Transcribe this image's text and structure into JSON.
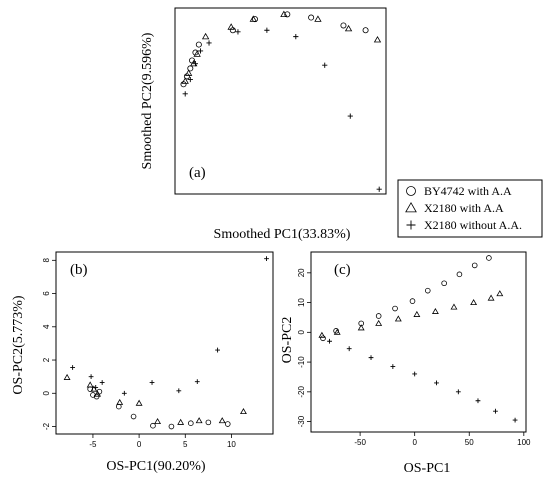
{
  "chart_data": [
    {
      "type": "scatter",
      "panel_label": "(a)",
      "xlabel": "Smoothed PC1(33.83%)",
      "ylabel": "Smoothed PC2(9.596%)",
      "xlim": [
        -4.6,
        7.8
      ],
      "ylim": [
        -4.5,
        1.35
      ],
      "xticks": [],
      "yticks": [],
      "series": [
        {
          "name": "BY4742 with A.A",
          "marker": "circle",
          "x": [
            -4.1,
            -3.9,
            -3.7,
            -3.6,
            -3.4,
            -3.2,
            -1.2,
            0.1,
            2.0,
            3.4,
            5.3,
            6.6
          ],
          "y": [
            -1.05,
            -0.8,
            -0.55,
            -0.3,
            -0.05,
            0.2,
            0.65,
            1.0,
            1.15,
            1.05,
            0.8,
            0.65
          ]
        },
        {
          "name": "X2180 with A.A",
          "marker": "triangle",
          "x": [
            -4.0,
            -3.8,
            -3.5,
            -3.3,
            -2.8,
            -1.3,
            0.0,
            1.8,
            3.8,
            5.6,
            7.3
          ],
          "y": [
            -0.95,
            -0.7,
            -0.4,
            -0.1,
            0.45,
            0.75,
            1.0,
            1.15,
            1.0,
            0.7,
            0.35
          ]
        },
        {
          "name": "X2180 without A.A.",
          "marker": "plus",
          "x": [
            -4.0,
            -3.7,
            -3.4,
            -3.1,
            -2.6,
            -0.9,
            0.8,
            2.5,
            4.2,
            5.7,
            7.4
          ],
          "y": [
            -1.35,
            -0.9,
            -0.4,
            0.0,
            0.25,
            0.6,
            0.65,
            0.45,
            -0.45,
            -2.05,
            -4.35
          ]
        }
      ]
    },
    {
      "type": "scatter",
      "panel_label": "(b)",
      "xlabel": "OS-PC1(90.20%)",
      "ylabel": "OS-PC2(5.773%)",
      "xlim": [
        -9,
        14.5
      ],
      "ylim": [
        -2.45,
        8.5
      ],
      "xticks": [
        -5,
        0,
        5,
        10
      ],
      "yticks": [
        -2,
        0,
        2,
        4,
        6,
        8
      ],
      "series": [
        {
          "name": "BY4742 with A.A",
          "marker": "circle",
          "x": [
            -5.3,
            -5.0,
            -4.6,
            -4.3,
            -2.2,
            -0.6,
            1.5,
            3.5,
            5.6,
            7.5,
            9.6
          ],
          "y": [
            0.25,
            -0.1,
            -0.2,
            0.1,
            -0.8,
            -1.4,
            -1.95,
            -2.0,
            -1.8,
            -1.75,
            -1.85
          ]
        },
        {
          "name": "X2180 with A.A",
          "marker": "triangle",
          "x": [
            -7.8,
            -5.3,
            -4.9,
            -4.5,
            -2.1,
            0.0,
            2.0,
            4.5,
            6.5,
            9.0,
            11.3
          ],
          "y": [
            0.95,
            0.5,
            0.25,
            -0.05,
            -0.55,
            -0.6,
            -1.7,
            -1.75,
            -1.65,
            -1.65,
            -1.1
          ]
        },
        {
          "name": "X2180 without A.A.",
          "marker": "plus",
          "x": [
            -7.2,
            -5.2,
            -4.7,
            -4.0,
            -1.6,
            1.4,
            4.3,
            6.3,
            8.5,
            13.8
          ],
          "y": [
            1.55,
            1.0,
            0.35,
            0.65,
            0.0,
            0.65,
            0.15,
            0.7,
            2.6,
            8.1
          ]
        }
      ]
    },
    {
      "type": "scatter",
      "panel_label": "(c)",
      "xlabel": "OS-PC1",
      "ylabel": "OS-PC2",
      "xlim": [
        -95,
        102
      ],
      "ylim": [
        -33.5,
        27
      ],
      "xticks": [
        -50,
        0,
        50,
        100
      ],
      "yticks": [
        -30,
        -20,
        -10,
        0,
        10,
        20
      ],
      "series": [
        {
          "name": "BY4742 with A.A",
          "marker": "circle",
          "x": [
            -84,
            -72,
            -49,
            -33,
            -18,
            -2,
            12,
            27,
            41,
            55,
            68
          ],
          "y": [
            -2,
            0.5,
            3,
            5.5,
            8,
            10.5,
            14,
            16.5,
            19.5,
            22.5,
            25
          ]
        },
        {
          "name": "X2180 with A.A",
          "marker": "triangle",
          "x": [
            -85,
            -71,
            -49,
            -33,
            -15,
            2,
            19,
            36,
            54,
            70,
            78
          ],
          "y": [
            -1,
            0,
            1.5,
            3,
            4.5,
            6,
            7,
            8.5,
            10,
            11.5,
            13
          ]
        },
        {
          "name": "X2180 without A.A.",
          "marker": "plus",
          "x": [
            -78,
            -60,
            -40,
            -20,
            0,
            20,
            40,
            58,
            74,
            92
          ],
          "y": [
            -3,
            -5.5,
            -8.5,
            -11.5,
            -14,
            -17,
            -20,
            -23,
            -26.5,
            -29.5
          ]
        }
      ]
    }
  ],
  "legend": {
    "placement": "right",
    "entries": [
      {
        "label": "BY4742 with A.A",
        "marker": "circle"
      },
      {
        "label": "X2180 with A.A",
        "marker": "triangle"
      },
      {
        "label": "X2180 without A.A.",
        "marker": "plus"
      }
    ]
  }
}
